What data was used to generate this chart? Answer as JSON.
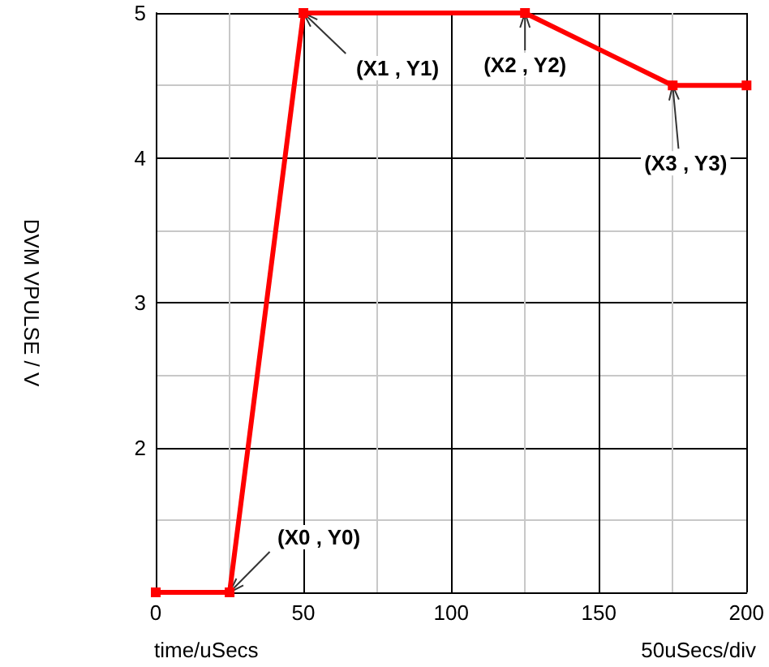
{
  "chart_data": {
    "type": "line",
    "xlabel": "time/uSecs",
    "ylabel": "DVM VPULSE / V",
    "x": [
      0,
      25,
      50,
      125,
      175,
      200
    ],
    "series": [
      {
        "color": "#ff0000",
        "values": [
          1,
          1,
          5,
          5,
          4.5,
          4.5
        ]
      }
    ],
    "xlim": [
      0,
      200
    ],
    "ylim": [
      1,
      5
    ],
    "xticks": [
      0,
      {
        "value": 25,
        "label": null
      },
      50,
      {
        "value": 75,
        "label": null
      },
      100,
      {
        "value": 125,
        "label": null
      },
      150,
      {
        "value": 175,
        "label": null
      },
      200
    ],
    "yticks": [
      {
        "value": 1.5,
        "label": null
      },
      2,
      {
        "value": 2.5,
        "label": null
      },
      3,
      {
        "value": 3.5,
        "label": null
      },
      4,
      {
        "value": 4.5,
        "label": null
      },
      5
    ],
    "grid": true,
    "marker": "square",
    "line_style": "solid",
    "annotations": [
      {
        "text": "(X0 , Y0)",
        "x": 25,
        "y": 1
      },
      {
        "text": "(X1 , Y1)",
        "x": 50,
        "y": 5
      },
      {
        "text": "(X2 , Y2)",
        "x": 125,
        "y": 5
      },
      {
        "text": "(X3 , Y3)",
        "x": 175,
        "y": 4.5
      },
      "50uSecs/div"
    ]
  }
}
